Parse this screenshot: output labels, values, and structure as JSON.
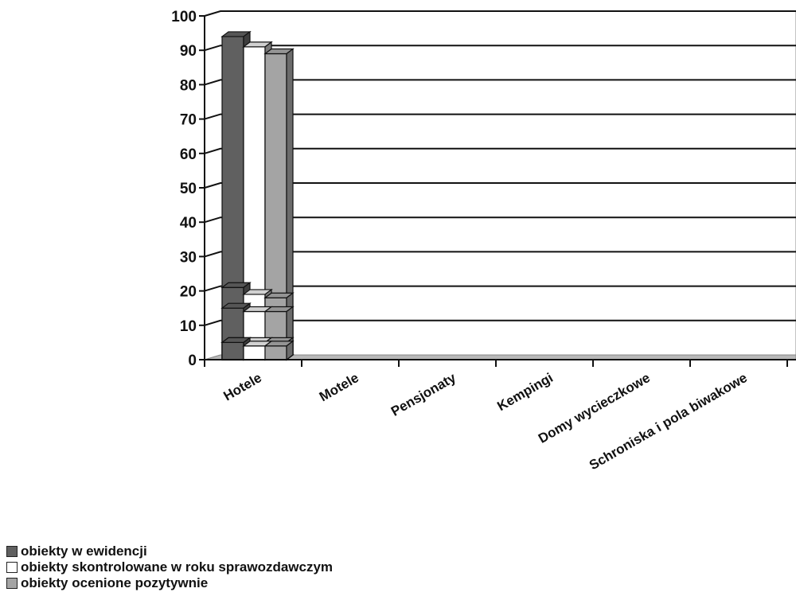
{
  "chart_data": {
    "type": "bar",
    "categories": [
      "Hotele",
      "Motele",
      "Pensjonaty",
      "Kempingi",
      "Domy wycieczkowe",
      "Schroniska i pola biwakowe"
    ],
    "series": [
      {
        "name": "obiekty w ewidencji",
        "values": [
          94,
          21,
          15,
          5,
          0,
          5
        ],
        "color": "#606060"
      },
      {
        "name": "obiekty skontrolowane w roku sprawozdawczym",
        "values": [
          91,
          19,
          14,
          5,
          0,
          4
        ],
        "color": "#ffffff"
      },
      {
        "name": "obiekty ocenione pozytywnie",
        "values": [
          89,
          18,
          14,
          5,
          0,
          4
        ],
        "color": "#a4a4a4"
      }
    ],
    "yticks": [
      "0",
      "10",
      "20",
      "30",
      "40",
      "50",
      "60",
      "70",
      "80",
      "90",
      "100"
    ],
    "ylim": [
      0,
      100
    ],
    "grid": true,
    "legend_position": "bottom-left"
  }
}
